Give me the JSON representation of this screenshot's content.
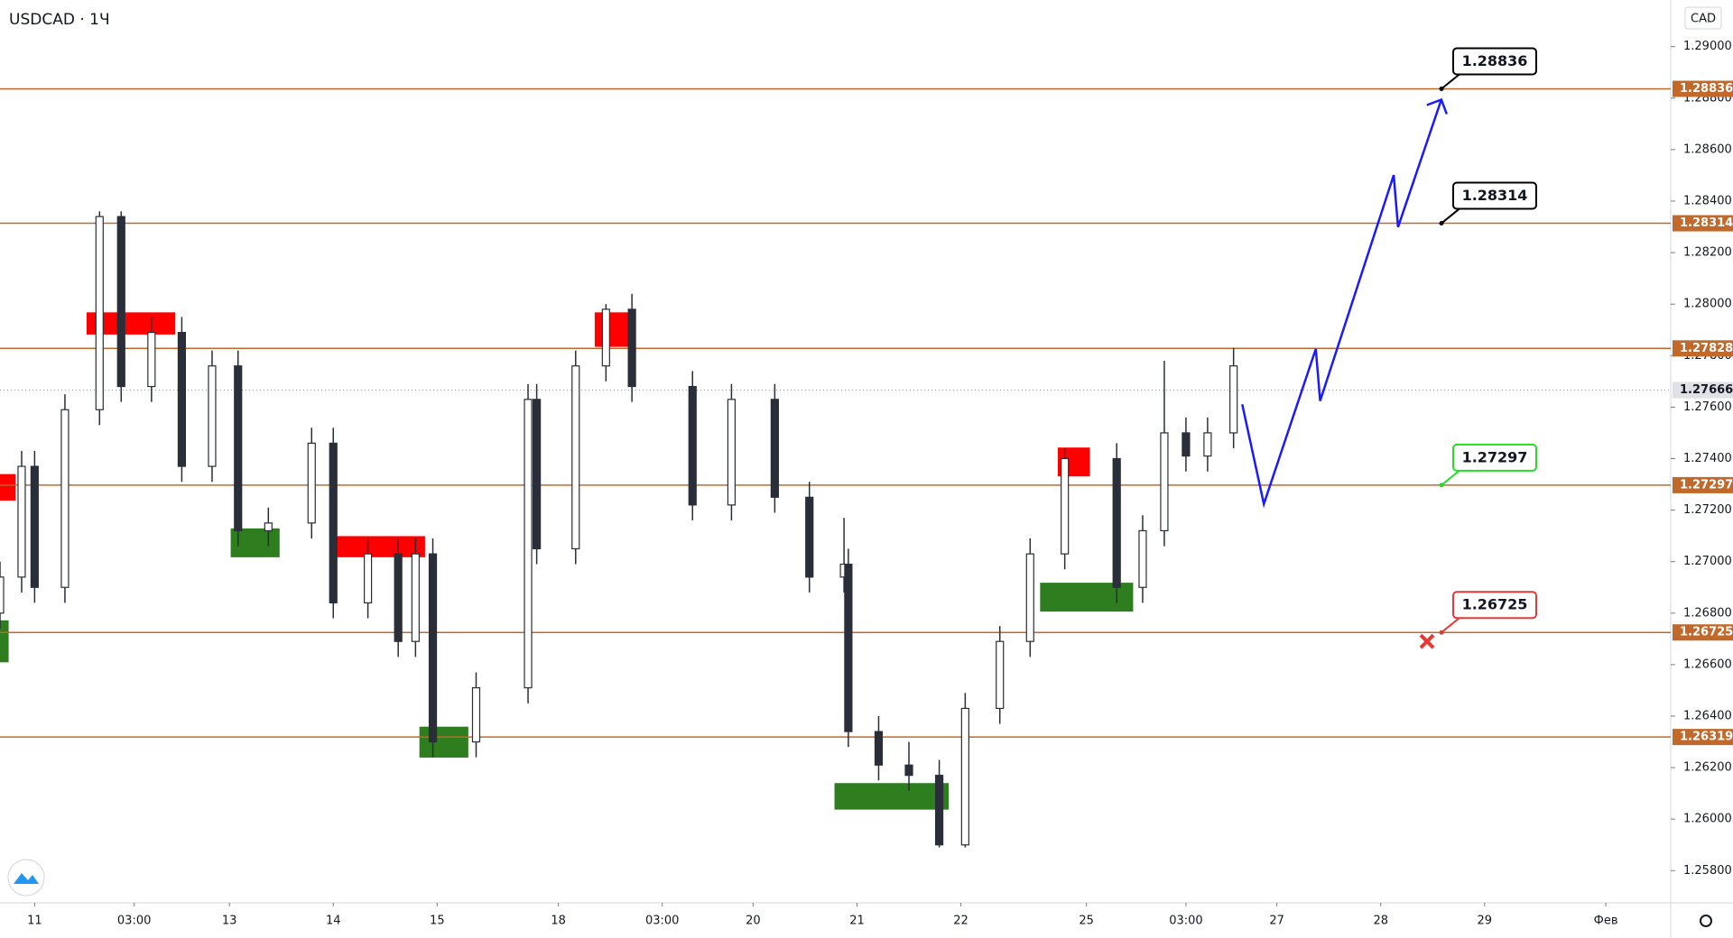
{
  "chart_data": {
    "type": "candlestick",
    "title": "USDCAD · 1Ч",
    "currency": "CAD",
    "xlim": [
      0,
      386
    ],
    "ylim": [
      1.25675,
      1.29181
    ],
    "xticks": [
      {
        "value": 8,
        "label": "11"
      },
      {
        "value": 31,
        "label": "03:00"
      },
      {
        "value": 53,
        "label": "13"
      },
      {
        "value": 77,
        "label": "14"
      },
      {
        "value": 101,
        "label": "15"
      },
      {
        "value": 129,
        "label": "18"
      },
      {
        "value": 153,
        "label": "03:00"
      },
      {
        "value": 174,
        "label": "20"
      },
      {
        "value": 198,
        "label": "21"
      },
      {
        "value": 222,
        "label": "22"
      },
      {
        "value": 251,
        "label": "25"
      },
      {
        "value": 274,
        "label": "03:00"
      },
      {
        "value": 295,
        "label": "27"
      },
      {
        "value": 319,
        "label": "28"
      },
      {
        "value": 343,
        "label": "29"
      },
      {
        "value": 371,
        "label": "Фев"
      }
    ],
    "yticks": [
      {
        "value": 1.258,
        "label": "1.25800"
      },
      {
        "value": 1.26,
        "label": "1.26000"
      },
      {
        "value": 1.262,
        "label": "1.26200"
      },
      {
        "value": 1.264,
        "label": "1.26400"
      },
      {
        "value": 1.266,
        "label": "1.26600"
      },
      {
        "value": 1.268,
        "label": "1.26800"
      },
      {
        "value": 1.27,
        "label": "1.27000"
      },
      {
        "value": 1.272,
        "label": "1.27200"
      },
      {
        "value": 1.274,
        "label": "1.27400"
      },
      {
        "value": 1.276,
        "label": "1.27600"
      },
      {
        "value": 1.278,
        "label": "1.27800"
      },
      {
        "value": 1.28,
        "label": "1.28000"
      },
      {
        "value": 1.282,
        "label": "1.28200"
      },
      {
        "value": 1.284,
        "label": "1.28400"
      },
      {
        "value": 1.286,
        "label": "1.28600"
      },
      {
        "value": 1.288,
        "label": "1.28800"
      },
      {
        "value": 1.29,
        "label": "1.29000"
      }
    ],
    "candle_color": "#2a2e39",
    "candles": {
      "x": [
        0,
        5,
        8,
        15,
        23,
        28,
        35,
        42,
        49,
        55,
        62,
        72,
        77,
        85,
        92,
        96,
        100,
        110,
        122,
        124,
        133,
        140,
        146,
        160,
        169,
        179,
        187,
        195,
        196,
        203,
        210,
        217,
        223,
        231,
        238,
        246,
        258,
        264,
        269,
        274,
        279,
        285
      ],
      "open": [
        1.268,
        1.2694,
        1.2737,
        1.269,
        1.2759,
        1.2834,
        1.2768,
        1.2789,
        1.2737,
        1.2776,
        1.2712,
        1.2715,
        1.2746,
        1.2684,
        1.2703,
        1.2669,
        1.2703,
        1.263,
        1.2651,
        1.2763,
        1.2705,
        1.2776,
        1.2798,
        1.2768,
        1.2722,
        1.2763,
        1.2725,
        1.2694,
        1.2699,
        1.2634,
        1.2621,
        1.2617,
        1.259,
        1.2643,
        1.2669,
        1.2703,
        1.274,
        1.269,
        1.2712,
        1.275,
        1.2741,
        1.275
      ],
      "high": [
        1.27,
        1.2743,
        1.2743,
        1.2765,
        1.2836,
        1.2836,
        1.2795,
        1.2795,
        1.2782,
        1.2782,
        1.2721,
        1.2752,
        1.2752,
        1.2709,
        1.2709,
        1.2709,
        1.2709,
        1.2657,
        1.2769,
        1.2769,
        1.2782,
        1.28,
        1.2804,
        1.2774,
        1.2769,
        1.2769,
        1.2731,
        1.2717,
        1.2705,
        1.264,
        1.263,
        1.2623,
        1.2649,
        1.2675,
        1.2709,
        1.2744,
        1.2746,
        1.2718,
        1.2778,
        1.2756,
        1.2756,
        1.2783
      ],
      "low": [
        1.2674,
        1.2688,
        1.2684,
        1.2684,
        1.2753,
        1.2762,
        1.2762,
        1.2731,
        1.2731,
        1.2706,
        1.2706,
        1.2709,
        1.2678,
        1.2678,
        1.2663,
        1.2663,
        1.2624,
        1.2624,
        1.2645,
        1.2699,
        1.2699,
        1.277,
        1.2762,
        1.2716,
        1.2716,
        1.2719,
        1.2688,
        1.2688,
        1.2628,
        1.2615,
        1.2611,
        1.2589,
        1.2589,
        1.2637,
        1.2663,
        1.2697,
        1.2684,
        1.2684,
        1.2706,
        1.2735,
        1.2735,
        1.2744
      ],
      "close": [
        1.2694,
        1.2737,
        1.269,
        1.2759,
        1.2834,
        1.2768,
        1.2789,
        1.2737,
        1.2776,
        1.2712,
        1.2715,
        1.2746,
        1.2684,
        1.2703,
        1.2669,
        1.2703,
        1.263,
        1.2651,
        1.2763,
        1.2705,
        1.2776,
        1.2798,
        1.2768,
        1.2722,
        1.2763,
        1.2725,
        1.2694,
        1.2699,
        1.2634,
        1.2621,
        1.2617,
        1.259,
        1.2643,
        1.2669,
        1.2703,
        1.274,
        1.269,
        1.2712,
        1.275,
        1.2741,
        1.275,
        1.2776
      ]
    },
    "zones": [
      {
        "x0": 20,
        "x1": 40.5,
        "y0": 1.27882,
        "y1": 1.27968,
        "color": "#ff0000"
      },
      {
        "x0": 0,
        "x1": 3.6,
        "y0": 1.27237,
        "y1": 1.2734,
        "color": "#ff0000"
      },
      {
        "x0": 0,
        "x1": 2,
        "y0": 1.26609,
        "y1": 1.26772,
        "color": "#2e7d1e"
      },
      {
        "x0": 53.3,
        "x1": 64.6,
        "y0": 1.27017,
        "y1": 1.27129,
        "color": "#2e7d1e"
      },
      {
        "x0": 77.7,
        "x1": 98.2,
        "y0": 1.27017,
        "y1": 1.27099,
        "color": "#ff0000"
      },
      {
        "x0": 96.9,
        "x1": 108.2,
        "y0": 1.26239,
        "y1": 1.26359,
        "color": "#2e7d1e"
      },
      {
        "x0": 137.4,
        "x1": 145.4,
        "y0": 1.27834,
        "y1": 1.27968,
        "color": "#ff0000"
      },
      {
        "x0": 192.8,
        "x1": 219.2,
        "y0": 1.26037,
        "y1": 1.2614,
        "color": "#2e7d1e"
      },
      {
        "x0": 244.4,
        "x1": 251.8,
        "y0": 1.27331,
        "y1": 1.27443,
        "color": "#ff0000"
      },
      {
        "x0": 240.3,
        "x1": 261.8,
        "y0": 1.26806,
        "y1": 1.26918,
        "color": "#2e7d1e"
      }
    ],
    "forecast": {
      "color": "#1a1aff",
      "x": [
        287,
        292,
        304,
        305,
        322,
        323,
        333
      ],
      "values": [
        1.27611,
        1.27224,
        1.27826,
        1.27624,
        1.28501,
        1.28299,
        1.28794
      ]
    },
    "level_color": "#c0692b",
    "levels": [
      1.28836,
      1.28314,
      1.27828,
      1.27297,
      1.26725,
      1.26319
    ],
    "current_price": 1.27666,
    "callouts": [
      {
        "value": 1.28836,
        "color": "#000000"
      },
      {
        "value": 1.28314,
        "color": "#000000"
      },
      {
        "value": 1.27297,
        "color": "#22dd22"
      },
      {
        "value": 1.26725,
        "color": "#e53935"
      }
    ]
  }
}
